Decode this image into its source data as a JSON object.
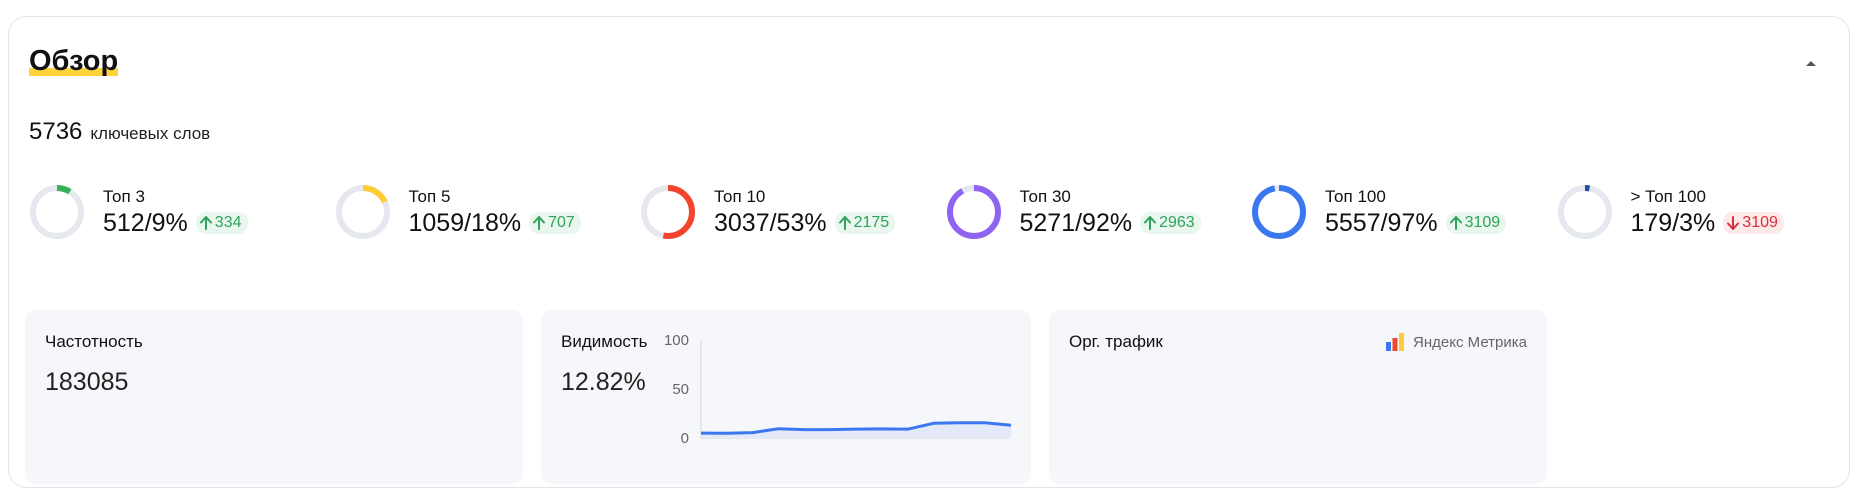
{
  "overview": {
    "title": "Обзор",
    "keywords_count": "5736",
    "keywords_label": "ключевых слов",
    "colors": {
      "accent_underline": "#ffd43b",
      "track": "#e6e8ef",
      "up": "#2fa35b",
      "down": "#d6303c"
    }
  },
  "tops": [
    {
      "label": "Топ 3",
      "value": "512/9%",
      "delta": "334",
      "direction": "up",
      "percent": 9,
      "color": "#34b15a"
    },
    {
      "label": "Топ 5",
      "value": "1059/18%",
      "delta": "707",
      "direction": "up",
      "percent": 18,
      "color": "#ffcc33"
    },
    {
      "label": "Топ 10",
      "value": "3037/53%",
      "delta": "2175",
      "direction": "up",
      "percent": 53,
      "color": "#f2452e"
    },
    {
      "label": "Топ 30",
      "value": "5271/92%",
      "delta": "2963",
      "direction": "up",
      "percent": 92,
      "color": "#8f64f0"
    },
    {
      "label": "Топ 100",
      "value": "5557/97%",
      "delta": "3109",
      "direction": "up",
      "percent": 97,
      "color": "#3b78f0"
    },
    {
      "label": "> Топ 100",
      "value": "179/3%",
      "delta": "3109",
      "direction": "down",
      "percent": 3,
      "color": "#1f4ea8"
    }
  ],
  "panels": {
    "frequency": {
      "title": "Частотность",
      "value": "183085"
    },
    "visibility": {
      "title": "Видимость",
      "value": "12.82%"
    },
    "traffic": {
      "title": "Орг. трафик",
      "metrika_label": "Яндекс Метрика",
      "metrika_icon": "yandex-metrika-icon"
    }
  },
  "chart_data": {
    "type": "area",
    "x": [
      1,
      2,
      3,
      4,
      5,
      6,
      7,
      8,
      9,
      10,
      11,
      12,
      13
    ],
    "series": [
      {
        "values": [
          5,
          4.8,
          5.5,
          9.5,
          8.5,
          8.5,
          9,
          9.3,
          9,
          15,
          15.5,
          15.5,
          13
        ]
      }
    ],
    "yticks": [
      "0",
      "50",
      "100"
    ],
    "ylim": [
      0,
      100
    ],
    "color": "#3b78f0",
    "fill": "#e3e9f9",
    "grid": false
  }
}
